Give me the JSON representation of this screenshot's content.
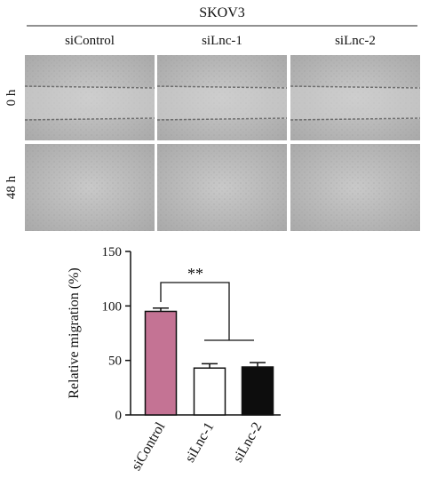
{
  "panel": {
    "title": "SKOV3",
    "columns": [
      "siControl",
      "siLnc-1",
      "siLnc-2"
    ],
    "rows": [
      "0 h",
      "48 h"
    ]
  },
  "chart_data": {
    "type": "bar",
    "ylabel": "Relative migration (%)",
    "categories": [
      "siControl",
      "siLnc-1",
      "siLnc-2"
    ],
    "values": [
      95,
      43,
      44
    ],
    "errors": [
      3,
      4,
      4
    ],
    "colors": [
      "#c47394",
      "#ffffff",
      "#0d0d0d"
    ],
    "ylim": [
      0,
      150
    ],
    "yticks": [
      0,
      50,
      100,
      150
    ],
    "annotation": "**"
  }
}
